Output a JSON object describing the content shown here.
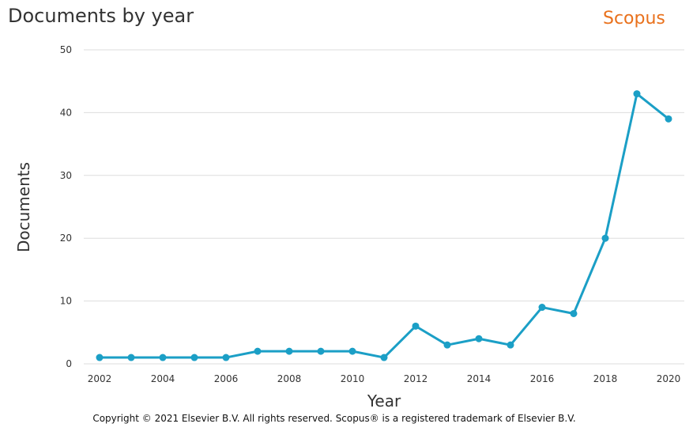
{
  "header": {
    "title": "Documents by year",
    "brand": "Scopus"
  },
  "footer": {
    "copyright": "Copyright © 2021 Elsevier B.V. All rights reserved. Scopus® is a registered trademark of Elsevier B.V."
  },
  "colors": {
    "line": "#1b9fc6",
    "brand": "#e9711c",
    "grid": "#dddddd"
  },
  "chart_data": {
    "type": "line",
    "title": "Documents by year",
    "xlabel": "Year",
    "ylabel": "Documents",
    "x": [
      2002,
      2003,
      2004,
      2005,
      2006,
      2007,
      2008,
      2009,
      2010,
      2011,
      2012,
      2013,
      2014,
      2015,
      2016,
      2017,
      2018,
      2019,
      2020
    ],
    "series": [
      {
        "values": [
          1,
          1,
          1,
          1,
          1,
          2,
          2,
          2,
          2,
          1,
          6,
          3,
          4,
          3,
          9,
          8,
          20,
          43,
          39
        ]
      }
    ],
    "xticks": [
      "2002",
      "2004",
      "2006",
      "2008",
      "2010",
      "2012",
      "2014",
      "2016",
      "2018",
      "2020"
    ],
    "yticks": [
      "0",
      "10",
      "20",
      "30",
      "40",
      "50"
    ],
    "xlim": [
      2002,
      2020
    ],
    "ylim": [
      0,
      50
    ],
    "grid": true
  }
}
